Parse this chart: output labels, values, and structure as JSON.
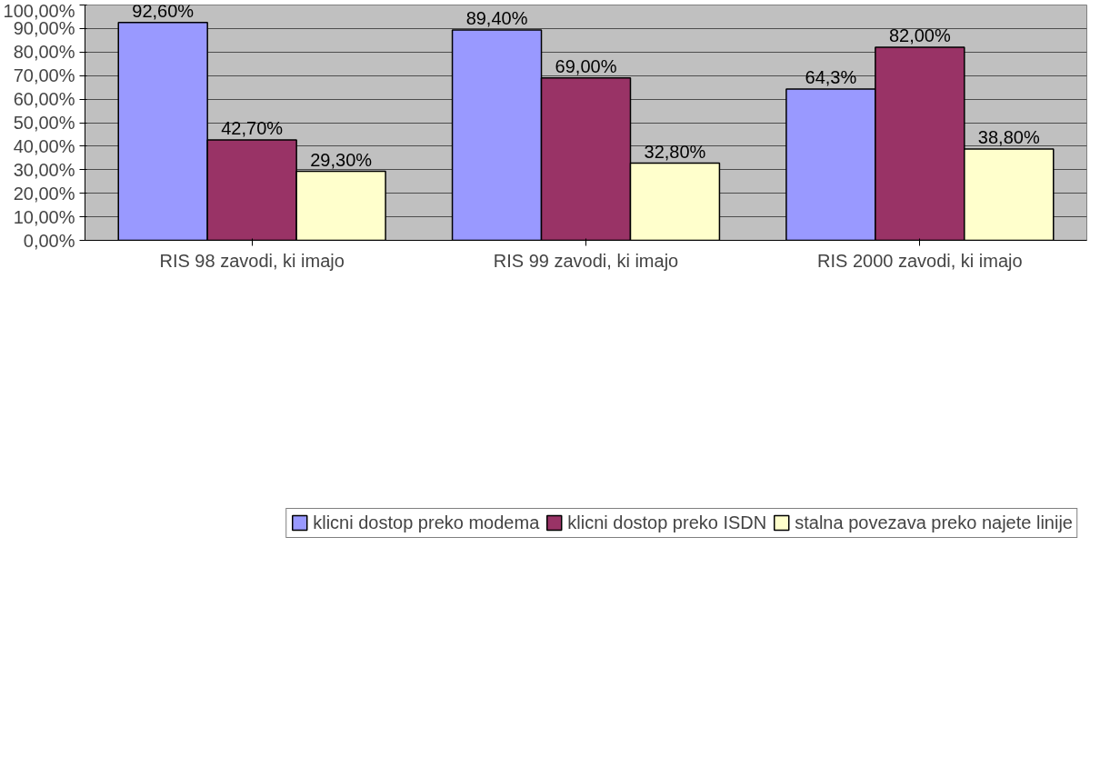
{
  "chart_data": {
    "type": "bar",
    "categories": [
      "RIS 98 zavodi, ki imajo",
      "RIS 99 zavodi, ki imajo",
      "RIS 2000 zavodi, ki imajo"
    ],
    "series": [
      {
        "name": "klicni dostop preko modema",
        "color": "#9999ff",
        "values": [
          92.6,
          89.4,
          64.3
        ],
        "value_labels": [
          "92,60%",
          "89,40%",
          "64,3%"
        ]
      },
      {
        "name": "klicni dostop preko ISDN",
        "color": "#993366",
        "values": [
          42.7,
          69.0,
          82.0
        ],
        "value_labels": [
          "42,70%",
          "69,00%",
          "82,00%"
        ]
      },
      {
        "name": "stalna povezava preko najete linije",
        "color": "#ffffcc",
        "values": [
          29.3,
          32.8,
          38.8
        ],
        "value_labels": [
          "29,30%",
          "32,80%",
          "38,80%"
        ]
      }
    ],
    "ylim": [
      0,
      100
    ],
    "yticks": [
      {
        "value": 0,
        "label": "0,00%"
      },
      {
        "value": 10,
        "label": "10,00%"
      },
      {
        "value": 20,
        "label": "20,00%"
      },
      {
        "value": 30,
        "label": "30,00%"
      },
      {
        "value": 40,
        "label": "40,00%"
      },
      {
        "value": 50,
        "label": "50,00%"
      },
      {
        "value": 60,
        "label": "60,00%"
      },
      {
        "value": 70,
        "label": "70,00%"
      },
      {
        "value": 80,
        "label": "80,00%"
      },
      {
        "value": 90,
        "label": "90,00%"
      },
      {
        "value": 100,
        "label": "100,00%"
      }
    ],
    "grid": "y",
    "legend": "bottom"
  }
}
